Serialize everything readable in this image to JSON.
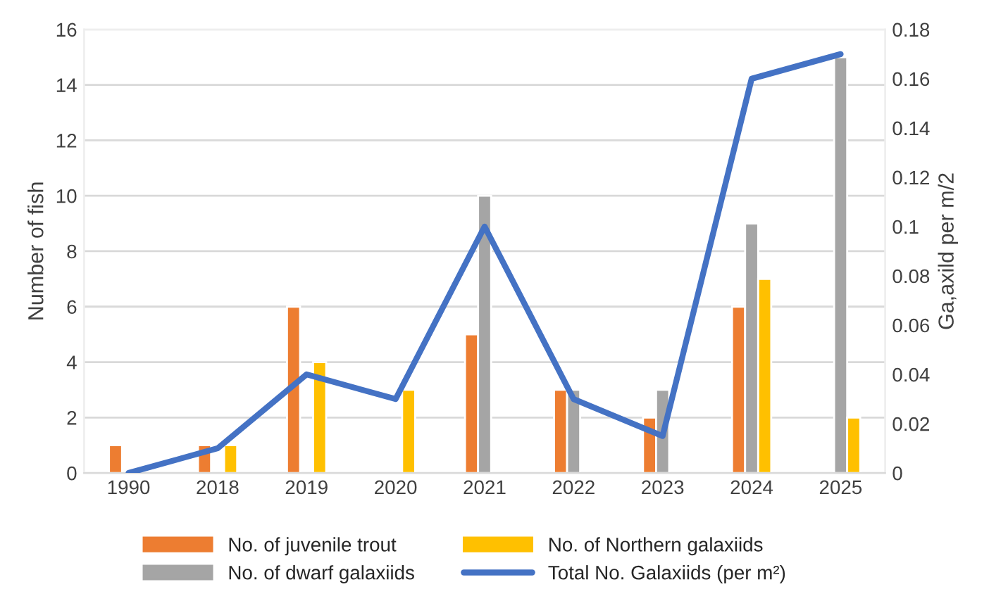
{
  "chart_data": {
    "type": "bar",
    "ylabel": "Number of fish",
    "y2label": "Ga,axild per m/2",
    "categories": [
      "1990",
      "2018",
      "2019",
      "2020",
      "2021",
      "2022",
      "2023",
      "2024",
      "2025"
    ],
    "series": [
      {
        "name": "No. of juvenile trout",
        "color": "#ed7d31",
        "values": [
          1,
          1,
          6,
          null,
          5,
          3,
          2,
          6,
          null
        ]
      },
      {
        "name": "No. of dwarf galaxiids",
        "color": "#a5a5a5",
        "values": [
          null,
          null,
          null,
          null,
          10,
          3,
          3,
          9,
          15
        ]
      },
      {
        "name": "No. of Northern galaxiids",
        "color": "#ffc000",
        "values": [
          null,
          1,
          4,
          3,
          null,
          null,
          null,
          7,
          2
        ]
      },
      {
        "name": "Total No. Galaxiids (per m²)",
        "type": "line",
        "axis": "y2",
        "color": "#4472c4",
        "values": [
          0,
          0.01,
          0.04,
          0.03,
          0.1,
          0.03,
          0.015,
          0.16,
          0.17
        ]
      }
    ],
    "ylim": [
      0,
      16
    ],
    "yticks": [
      0,
      2,
      4,
      6,
      8,
      10,
      12,
      14,
      16
    ],
    "y2lim": [
      0,
      0.18
    ],
    "y2ticks": [
      0,
      0.02,
      0.04,
      0.06,
      0.08,
      0.1,
      0.12,
      0.14,
      0.16,
      0.18
    ],
    "grid": "y",
    "legend": "bottom",
    "marker": "none",
    "line_style": "solid"
  }
}
